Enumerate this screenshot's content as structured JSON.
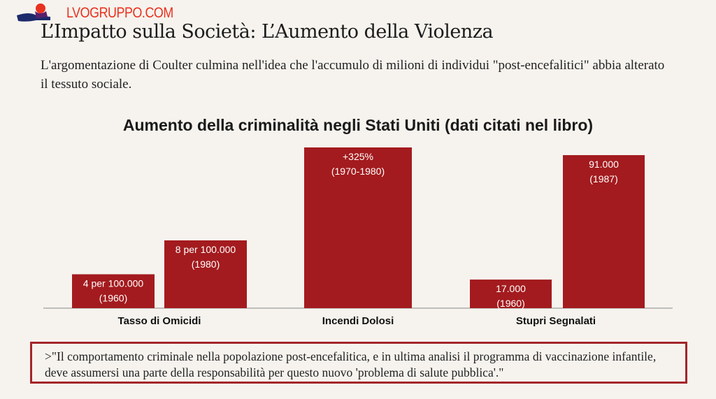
{
  "logo": {
    "text": "LVOGRUPPO.COM"
  },
  "header": {
    "title": "L’Impatto sulla Società: L’Aumento della Violenza",
    "intro": "L'argomentazione di Coulter culmina nell'idea che l'accumulo di milioni di individui \"post-encefalitici\" abbia alterato il tessuto sociale."
  },
  "chart_data": {
    "type": "bar",
    "title": "Aumento della criminalità negli Stati Uniti (dati citati nel libro)",
    "categories": [
      "Tasso di Omicidi",
      "Incendi Dolosi",
      "Stupri Segnalati"
    ],
    "bar_color": "#a31b1e",
    "groups": [
      {
        "category": "Tasso di Omicidi",
        "bars": [
          {
            "value": 4,
            "label1": "4 per 100.000",
            "label2": "(1960)"
          },
          {
            "value": 8,
            "label1": "8 per 100.000",
            "label2": "(1980)"
          }
        ]
      },
      {
        "category": "Incendi Dolosi",
        "bars": [
          {
            "value": 325,
            "label1": "+325%",
            "label2": "(1970-1980)"
          }
        ]
      },
      {
        "category": "Stupri Segnalati",
        "bars": [
          {
            "value": 17000,
            "label1": "17.000",
            "label2": "(1960)"
          },
          {
            "value": 91000,
            "label1": "91.000",
            "label2": "(1987)"
          }
        ]
      }
    ],
    "xlabel": "",
    "ylabel": "",
    "grid": false
  },
  "quote": {
    "text": ">\"Il comportamento criminale nella popolazione post-encefalitica, e in ultima analisi il programma di vaccinazione infantile, deve assumersi una parte della responsabilità per questo nuovo 'problema di salute pubblica'.\""
  }
}
